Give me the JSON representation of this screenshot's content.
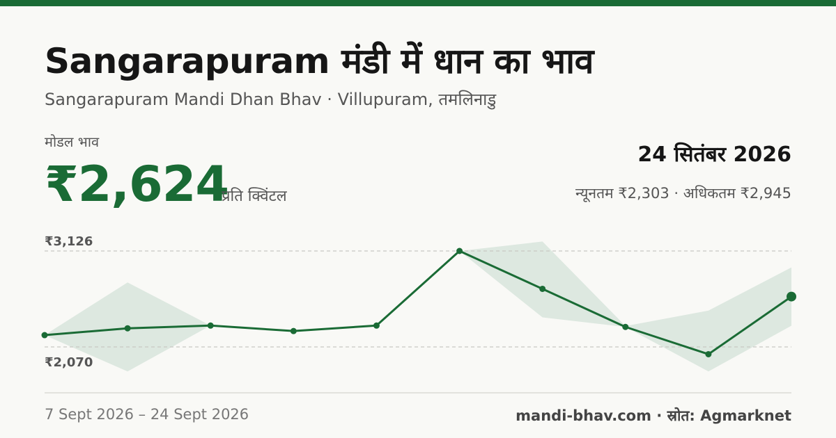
{
  "header": {
    "title": "Sangarapuram मंडी में धान का भाव",
    "subtitle": "Sangarapuram Mandi Dhan Bhav · Villupuram, तमलिनाडु"
  },
  "price": {
    "label": "मोडल भाव",
    "value": "₹2,624",
    "unit": "प्रति क्विंटल"
  },
  "summary": {
    "date": "24 सितंबर 2026",
    "range": "न्यूनतम ₹2,303 · अधिकतम ₹2,945"
  },
  "footer": {
    "date_range": "7 Sept 2026 – 24 Sept 2026",
    "source": "mandi-bhav.com · स्रोत: Agmarknet"
  },
  "colors": {
    "accent": "#1a6b35",
    "band": "#dde8e0",
    "background": "#f9f9f6"
  },
  "chart_data": {
    "type": "line",
    "y_ticks": [
      3126,
      2070
    ],
    "y_tick_labels": [
      "₹3,126",
      "₹2,070"
    ],
    "series": [
      {
        "name": "मोडल भाव",
        "values": [
          2200,
          2275,
          2305,
          2245,
          2305,
          3126,
          2709,
          2290,
          1990,
          2624
        ]
      }
    ],
    "band": {
      "min": [
        2200,
        1800,
        2305,
        2245,
        2305,
        3126,
        2395,
        2290,
        1800,
        2303
      ],
      "max": [
        2200,
        2780,
        2305,
        2245,
        2305,
        3126,
        3230,
        2300,
        2470,
        2945
      ]
    },
    "grid": true,
    "legend": "none"
  }
}
